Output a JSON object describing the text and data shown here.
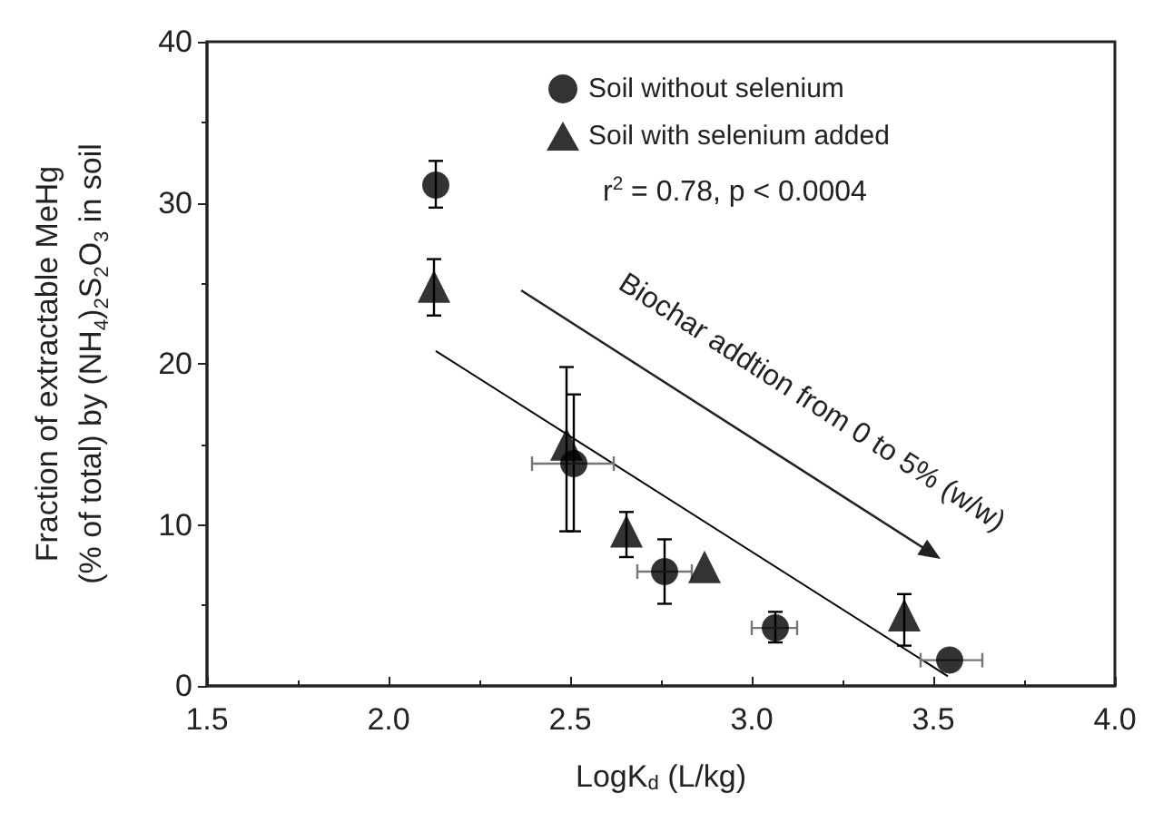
{
  "chart_data": {
    "type": "scatter",
    "xlabel": "LogK$_{d}$ (L/kg)",
    "ylabel": "Fraction of extractable MeHg\n(% of total) by (NH$_{4}$)$_{2}$S$_{2}$O$_{3}$ in soil",
    "xlim": [
      1.5,
      4.0
    ],
    "xticks": [
      1.5,
      {
        "value": 2,
        "label": "2.0"
      },
      2.5,
      {
        "value": 3,
        "label": "3.0"
      },
      3.5,
      {
        "value": 4,
        "label": "4.0"
      }
    ],
    "ylim": [
      0,
      40
    ],
    "yticks": [
      0,
      10,
      20,
      30,
      40
    ],
    "legend": "top right",
    "grid": false,
    "annotations": [
      "r$^{2}$ = 0.78, p < 0.0004",
      "Biochar addtion from 0 to 5% (w/w)"
    ],
    "series": [
      {
        "name": "Soil without selenium",
        "color": "#000000",
        "marker": "circle",
        "x": [
          2.13,
          2.51,
          2.76,
          3.065,
          3.545
        ],
        "values": [
          31.1,
          13.8,
          7.1,
          3.6,
          1.6
        ],
        "errors": [
          [
            29.7,
            32.6
          ],
          [
            9.6,
            18.1
          ],
          [
            5.1,
            9.1
          ],
          [
            2.7,
            4.6
          ],
          null
        ],
        "xerrors": [
          null,
          [
            2.395,
            2.62
          ],
          [
            2.685,
            2.835
          ],
          [
            3.0,
            3.125
          ],
          [
            3.465,
            3.635
          ]
        ]
      },
      {
        "name": "Soil with selenium added",
        "color": "#000000",
        "marker": "triangle",
        "x": [
          2.125,
          2.49,
          2.655,
          2.87,
          3.42
        ],
        "values": [
          24.8,
          15.0,
          9.6,
          7.4,
          4.4
        ],
        "errors": [
          [
            23.0,
            26.5
          ],
          [
            9.6,
            19.8
          ],
          [
            8.0,
            10.8
          ],
          null,
          [
            2.5,
            5.7
          ]
        ]
      },
      {
        "type": "line",
        "color": "#000000",
        "marker": "none",
        "x": [
          2.13,
          3.54
        ],
        "values": [
          20.8,
          0.6
        ]
      }
    ]
  }
}
